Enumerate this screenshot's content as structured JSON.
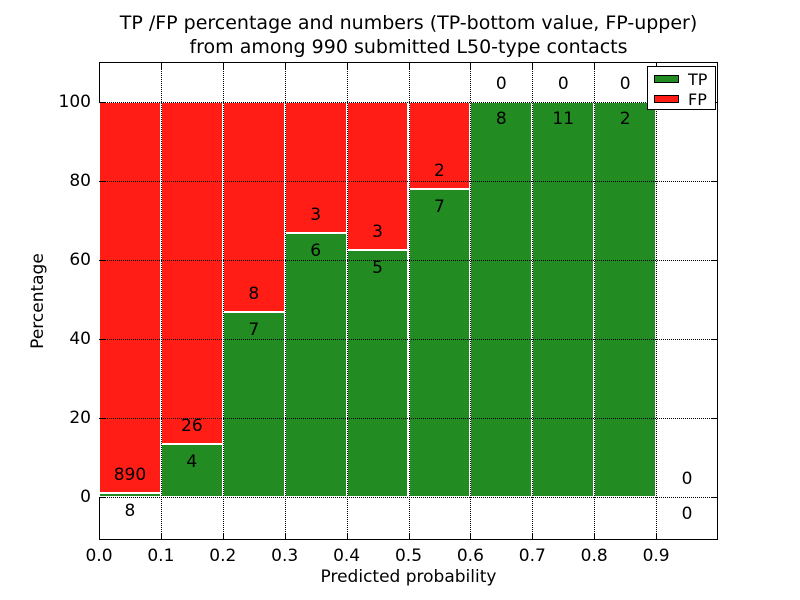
{
  "title": {
    "line1": "TP /FP percentage and numbers (TP-bottom value, FP-upper)",
    "line2": "from among 990 submitted L50-type contacts"
  },
  "chart_data": {
    "type": "bar",
    "stacked": true,
    "title": "TP /FP percentage and numbers (TP-bottom value, FP-upper) from among 990 submitted L50-type contacts",
    "xlabel": "Predicted probability",
    "ylabel": "Percentage",
    "xlim": [
      0,
      1.0
    ],
    "ylim": [
      -11,
      110
    ],
    "grid": "dotted",
    "total_contacts": 990,
    "x_ticks": [
      {
        "value": 0.0,
        "label": "0.0"
      },
      {
        "value": 0.1,
        "label": "0.1"
      },
      {
        "value": 0.2,
        "label": "0.2"
      },
      {
        "value": 0.3,
        "label": "0.3"
      },
      {
        "value": 0.4,
        "label": "0.4"
      },
      {
        "value": 0.5,
        "label": "0.5"
      },
      {
        "value": 0.6,
        "label": "0.6"
      },
      {
        "value": 0.7,
        "label": "0.7"
      },
      {
        "value": 0.8,
        "label": "0.8"
      },
      {
        "value": 0.9,
        "label": "0.9"
      }
    ],
    "y_ticks": [
      {
        "value": 0,
        "label": "0"
      },
      {
        "value": 20,
        "label": "20"
      },
      {
        "value": 40,
        "label": "40"
      },
      {
        "value": 60,
        "label": "60"
      },
      {
        "value": 80,
        "label": "80"
      },
      {
        "value": 100,
        "label": "100"
      }
    ],
    "legend": {
      "position": "upper right",
      "entries": [
        {
          "label": "TP",
          "color": "#228b22"
        },
        {
          "label": "FP",
          "color": "#ff1d16"
        }
      ]
    },
    "bins": [
      {
        "x0": 0.0,
        "x1": 0.1,
        "tp": 8,
        "fp": 890,
        "tp_pct": 0.891,
        "has_bar": true
      },
      {
        "x0": 0.1,
        "x1": 0.2,
        "tp": 4,
        "fp": 26,
        "tp_pct": 13.333,
        "has_bar": true
      },
      {
        "x0": 0.2,
        "x1": 0.3,
        "tp": 7,
        "fp": 8,
        "tp_pct": 46.667,
        "has_bar": true
      },
      {
        "x0": 0.3,
        "x1": 0.4,
        "tp": 6,
        "fp": 3,
        "tp_pct": 66.667,
        "has_bar": true
      },
      {
        "x0": 0.4,
        "x1": 0.5,
        "tp": 5,
        "fp": 3,
        "tp_pct": 62.5,
        "has_bar": true
      },
      {
        "x0": 0.5,
        "x1": 0.6,
        "tp": 7,
        "fp": 2,
        "tp_pct": 77.778,
        "has_bar": true
      },
      {
        "x0": 0.6,
        "x1": 0.7,
        "tp": 8,
        "fp": 0,
        "tp_pct": 100,
        "has_bar": true
      },
      {
        "x0": 0.7,
        "x1": 0.8,
        "tp": 11,
        "fp": 0,
        "tp_pct": 100,
        "has_bar": true
      },
      {
        "x0": 0.8,
        "x1": 0.9,
        "tp": 2,
        "fp": 0,
        "tp_pct": 100,
        "has_bar": true
      },
      {
        "x0": 0.9,
        "x1": 1.0,
        "tp": 0,
        "fp": 0,
        "tp_pct": 0,
        "has_bar": false
      }
    ],
    "colors": {
      "tp": "#228b22",
      "fp": "#ff1d16",
      "bar_edge": "#ffffff",
      "grid": "#000000",
      "background": "#ffffff",
      "text": "#000000"
    }
  }
}
